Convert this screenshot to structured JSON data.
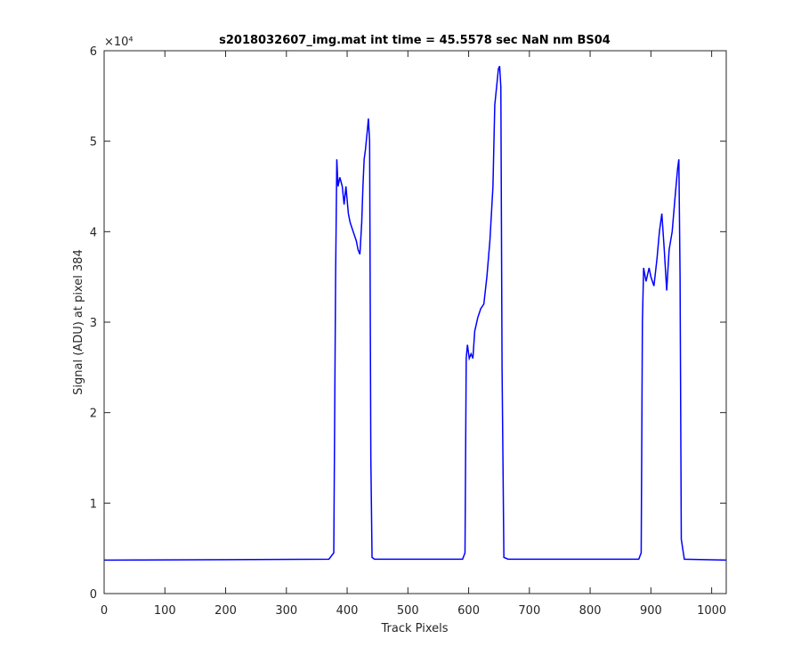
{
  "chart_data": {
    "type": "line",
    "title": "s2018032607_img.mat int time = 45.5578 sec  NaN nm BS04",
    "x_label": "Track Pixels",
    "y_label": "Signal (ADU) at pixel 384",
    "y_exponent_label": "×10⁴",
    "xlim": [
      0,
      1024
    ],
    "ylim": [
      0,
      6
    ],
    "xticks": [
      0,
      100,
      200,
      300,
      400,
      500,
      600,
      700,
      800,
      900,
      1000
    ],
    "yticks": [
      0,
      1,
      2,
      3,
      4,
      5,
      6
    ],
    "grid": false,
    "x": [
      0,
      370,
      378,
      381,
      383,
      385,
      388,
      392,
      395,
      398,
      402,
      405,
      410,
      415,
      418,
      421,
      424,
      426,
      428,
      430,
      433,
      435,
      437,
      439,
      441,
      445,
      590,
      594,
      596,
      598,
      601,
      604,
      607,
      610,
      615,
      620,
      625,
      630,
      635,
      640,
      643,
      646,
      649,
      651,
      653,
      655,
      658,
      665,
      880,
      884,
      886,
      888,
      892,
      897,
      900,
      905,
      910,
      914,
      918,
      922,
      926,
      930,
      935,
      940,
      944,
      946,
      948,
      950,
      955,
      1024
    ],
    "series": [
      {
        "color": "#0000ff",
        "values": [
          0.37,
          0.38,
          0.45,
          3.5,
          4.8,
          4.5,
          4.6,
          4.5,
          4.3,
          4.5,
          4.2,
          4.1,
          4.0,
          3.9,
          3.8,
          3.75,
          4.1,
          4.5,
          4.8,
          4.9,
          5.1,
          5.25,
          5.0,
          1.5,
          0.4,
          0.38,
          0.38,
          0.45,
          2.6,
          2.75,
          2.6,
          2.65,
          2.6,
          2.9,
          3.05,
          3.15,
          3.2,
          3.5,
          3.9,
          4.5,
          5.4,
          5.6,
          5.8,
          5.83,
          5.6,
          2.5,
          0.4,
          0.38,
          0.38,
          0.45,
          3.0,
          3.6,
          3.45,
          3.6,
          3.5,
          3.4,
          3.7,
          4.0,
          4.2,
          3.8,
          3.35,
          3.8,
          4.0,
          4.4,
          4.7,
          4.8,
          3.5,
          0.6,
          0.38,
          0.37
        ]
      }
    ]
  }
}
